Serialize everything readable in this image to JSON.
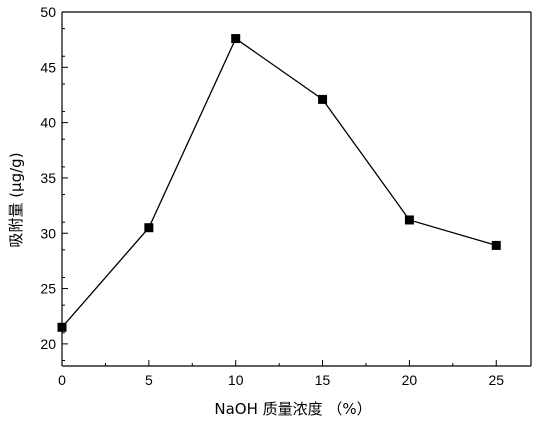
{
  "chart_data": {
    "type": "line",
    "x": [
      0,
      5,
      10,
      15,
      20,
      25
    ],
    "series": [
      {
        "values": [
          21.5,
          30.5,
          47.6,
          42.1,
          31.2,
          28.9
        ]
      }
    ],
    "xlabel": "NaOH 质量浓度 （%）",
    "ylabel": "吸附量 (μg/g)",
    "xlim": [
      0,
      27
    ],
    "ylim": [
      18,
      50
    ],
    "xticks": [
      "0",
      "5",
      "10",
      "15",
      "20",
      "25"
    ],
    "yticks": [
      "20",
      "25",
      "30",
      "35",
      "40",
      "45",
      "50"
    ],
    "grid": false,
    "marker": "square",
    "colors": {
      "line": "#000000",
      "marker": "#000000",
      "axis": "#000000"
    }
  }
}
